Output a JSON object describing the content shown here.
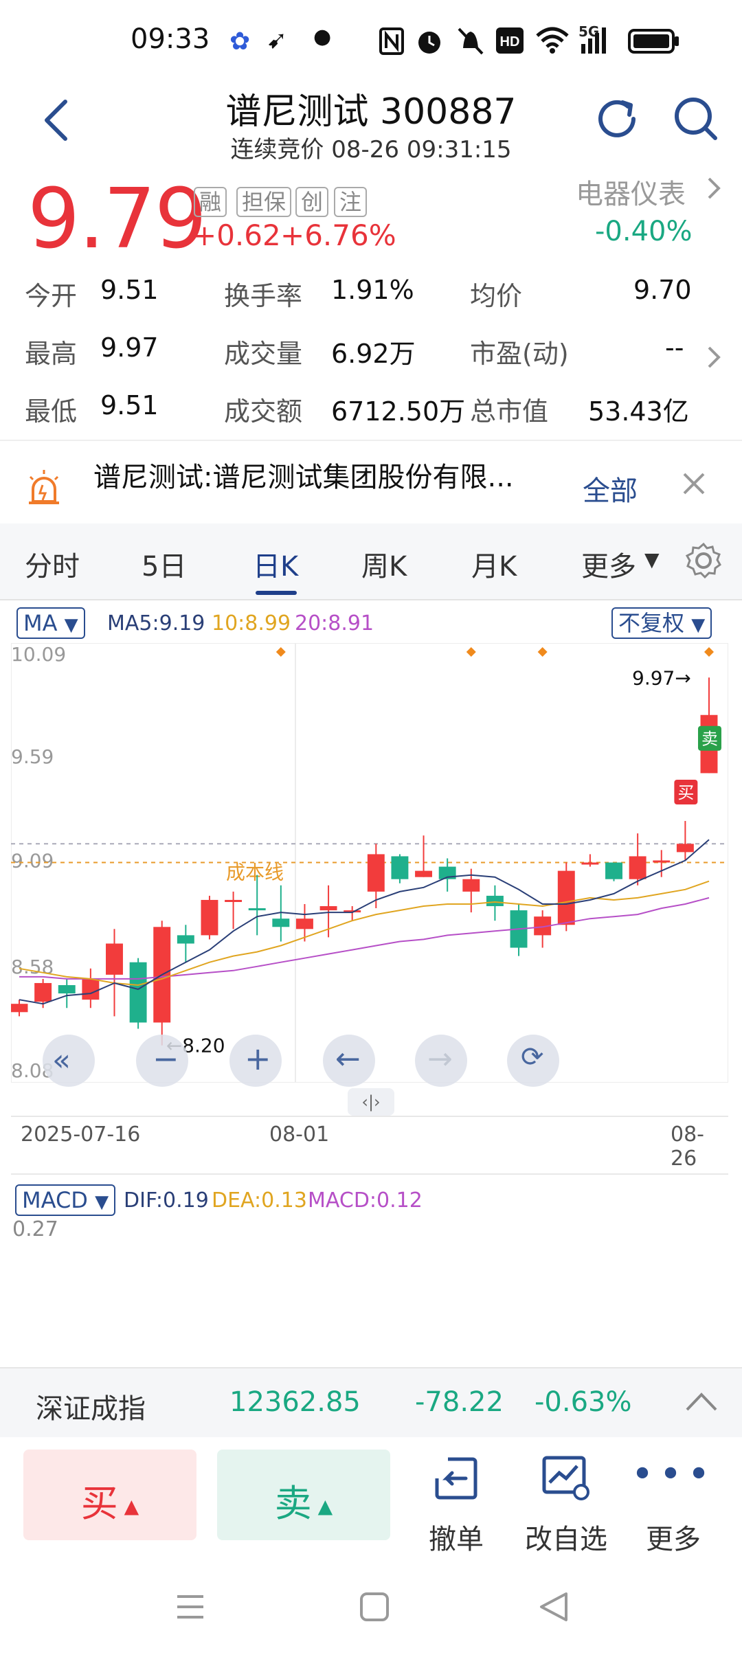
{
  "status_bar": {
    "time": "09:33",
    "network": "5G",
    "icons": [
      "baidu-icon",
      "feather-icon",
      "dot-icon",
      "nfc-icon",
      "alarm-icon",
      "mute-icon",
      "hd-icon",
      "wifi-icon",
      "signal-icon",
      "battery-icon"
    ]
  },
  "header": {
    "title": "谱尼测试 300887",
    "subtitle": "连续竞价 08-26 09:31:15"
  },
  "quote": {
    "price": "9.79",
    "tags": [
      "融",
      "担保",
      "创",
      "注"
    ],
    "change": "+0.62",
    "change_pct": "+6.76%",
    "sector_name": "电器仪表",
    "sector_change": "-0.40%",
    "stats": [
      {
        "label": "今开",
        "value": "9.51"
      },
      {
        "label": "换手率",
        "value": "1.91%"
      },
      {
        "label": "均价",
        "value": "9.70"
      },
      {
        "label": "最高",
        "value": "9.97"
      },
      {
        "label": "成交量",
        "value": "6.92万"
      },
      {
        "label": "市盈(动)",
        "value": "--"
      },
      {
        "label": "最低",
        "value": "9.51"
      },
      {
        "label": "成交额",
        "value": "6712.50万"
      },
      {
        "label": "总市值",
        "value": "53.43亿"
      }
    ]
  },
  "notice": {
    "text": "谱尼测试:谱尼测试集团股份有限...",
    "all_label": "全部"
  },
  "tabs": {
    "items": [
      "分时",
      "5日",
      "日K",
      "周K",
      "月K",
      "更多"
    ],
    "active": "日K"
  },
  "chart_controls": {
    "ma_label": "MA",
    "ma5": "MA5:9.19",
    "ma10": "10:8.99",
    "ma20": "20:8.91",
    "adjust_label": "不复权",
    "macd_label": "MACD",
    "dif": "DIF:0.19",
    "dea": "DEA:0.13",
    "macd": "MACD:0.12",
    "macd_axis_top": "0.27",
    "cost_line_label": "成本线",
    "buy_marker": "买",
    "sell_marker": "卖",
    "high_marker": "9.97→",
    "low_marker": "←8.20"
  },
  "chart_data": {
    "type": "candlestick",
    "ylim": [
      8.08,
      10.09
    ],
    "y_ticks": [
      "10.09",
      "9.59",
      "9.09",
      "8.58",
      "8.08"
    ],
    "x_labels": [
      "2025-07-16",
      "08-01",
      "08-26"
    ],
    "colors": {
      "up": "#f23c3c",
      "down": "#1fb08c",
      "ma5": "#2a3f77",
      "ma10": "#e0a520",
      "ma20": "#b64fc7",
      "cost": "#e89a2a"
    },
    "cost_line": 9.08,
    "prev_close_line": 9.17,
    "candles": [
      {
        "o": 8.36,
        "c": 8.4,
        "h": 8.42,
        "l": 8.34
      },
      {
        "o": 8.41,
        "c": 8.5,
        "h": 8.52,
        "l": 8.38
      },
      {
        "o": 8.49,
        "c": 8.45,
        "h": 8.52,
        "l": 8.38
      },
      {
        "o": 8.42,
        "c": 8.52,
        "h": 8.57,
        "l": 8.38
      },
      {
        "o": 8.54,
        "c": 8.69,
        "h": 8.76,
        "l": 8.34
      },
      {
        "o": 8.6,
        "c": 8.31,
        "h": 8.62,
        "l": 8.28
      },
      {
        "o": 8.31,
        "c": 8.77,
        "h": 8.8,
        "l": 8.2
      },
      {
        "o": 8.73,
        "c": 8.69,
        "h": 8.78,
        "l": 8.6
      },
      {
        "o": 8.73,
        "c": 8.9,
        "h": 8.92,
        "l": 8.71
      },
      {
        "o": 8.89,
        "c": 8.9,
        "h": 8.94,
        "l": 8.76
      },
      {
        "o": 8.86,
        "c": 8.85,
        "h": 9.02,
        "l": 8.73
      },
      {
        "o": 8.81,
        "c": 8.77,
        "h": 8.97,
        "l": 8.7
      },
      {
        "o": 8.76,
        "c": 8.81,
        "h": 8.88,
        "l": 8.7
      },
      {
        "o": 8.85,
        "c": 8.87,
        "h": 8.97,
        "l": 8.72
      },
      {
        "o": 8.84,
        "c": 8.85,
        "h": 8.87,
        "l": 8.8
      },
      {
        "o": 8.94,
        "c": 9.12,
        "h": 9.17,
        "l": 8.86
      },
      {
        "o": 9.11,
        "c": 9.0,
        "h": 9.12,
        "l": 8.98
      },
      {
        "o": 9.01,
        "c": 9.04,
        "h": 9.21,
        "l": 9.01
      },
      {
        "o": 9.06,
        "c": 9.0,
        "h": 9.1,
        "l": 8.94
      },
      {
        "o": 8.94,
        "c": 9.0,
        "h": 9.05,
        "l": 8.84
      },
      {
        "o": 8.92,
        "c": 8.87,
        "h": 8.97,
        "l": 8.8
      },
      {
        "o": 8.85,
        "c": 8.67,
        "h": 8.88,
        "l": 8.63
      },
      {
        "o": 8.73,
        "c": 8.82,
        "h": 8.85,
        "l": 8.67
      },
      {
        "o": 8.78,
        "c": 9.04,
        "h": 9.08,
        "l": 8.75
      },
      {
        "o": 9.08,
        "c": 9.08,
        "h": 9.12,
        "l": 9.06
      },
      {
        "o": 9.08,
        "c": 9.0,
        "h": 9.08,
        "l": 8.99
      },
      {
        "o": 9.0,
        "c": 9.11,
        "h": 9.22,
        "l": 8.97
      },
      {
        "o": 9.08,
        "c": 9.09,
        "h": 9.14,
        "l": 9.01
      },
      {
        "o": 9.13,
        "c": 9.17,
        "h": 9.28,
        "l": 9.09
      },
      {
        "o": 9.51,
        "c": 9.79,
        "h": 9.97,
        "l": 9.51
      }
    ],
    "ma5": [
      8.42,
      8.4,
      8.44,
      8.45,
      8.5,
      8.47,
      8.54,
      8.6,
      8.66,
      8.75,
      8.82,
      8.84,
      8.83,
      8.84,
      8.84,
      8.9,
      8.94,
      8.96,
      9.01,
      9.02,
      9.01,
      8.95,
      8.88,
      8.88,
      8.9,
      8.93,
      8.99,
      9.04,
      9.09,
      9.19
    ],
    "ma10": [
      8.57,
      8.55,
      8.53,
      8.52,
      8.5,
      8.49,
      8.52,
      8.56,
      8.6,
      8.63,
      8.65,
      8.68,
      8.72,
      8.76,
      8.8,
      8.83,
      8.85,
      8.87,
      8.88,
      8.88,
      8.89,
      8.88,
      8.87,
      8.89,
      8.91,
      8.9,
      8.91,
      8.93,
      8.95,
      8.99
    ],
    "ma20": [
      8.53,
      8.53,
      8.52,
      8.52,
      8.52,
      8.52,
      8.53,
      8.54,
      8.55,
      8.56,
      8.58,
      8.6,
      8.62,
      8.64,
      8.66,
      8.68,
      8.7,
      8.71,
      8.73,
      8.74,
      8.75,
      8.76,
      8.77,
      8.79,
      8.81,
      8.82,
      8.83,
      8.86,
      8.88,
      8.91
    ],
    "high_markers_at": [
      11,
      19,
      22,
      29
    ]
  },
  "index_bar": {
    "name": "深证成指",
    "value": "12362.85",
    "change": "-78.22",
    "change_pct": "-0.63%"
  },
  "actions": {
    "buy": "买",
    "sell": "卖",
    "cancel": "撤单",
    "edit_watchlist": "改自选",
    "more": "更多"
  }
}
